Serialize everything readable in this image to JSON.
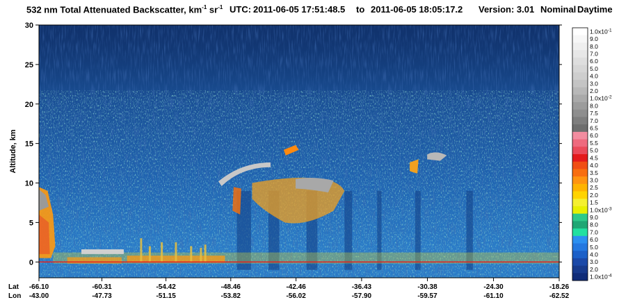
{
  "header": {
    "title_main": "532 nm Total Attenuated Backscatter, km",
    "title_unit_exp1": "-1",
    "title_unit_mid": " sr",
    "title_unit_exp2": "-1",
    "utc_label": "UTC:",
    "utc_start": "2011-06-05 17:51:48.5",
    "utc_to": "to",
    "utc_end": "2011-06-05 18:05:17.2",
    "version_label": "Version: 3.01",
    "mode_label": "Nominal",
    "daytime_label": "Daytime"
  },
  "chart_data": {
    "type": "heatmap",
    "ylabel": "Altitude, km",
    "ylim": [
      -2,
      30
    ],
    "yticks": [
      0,
      5,
      10,
      15,
      20,
      25,
      30
    ],
    "x_row_labels": [
      "Lat",
      "Lon"
    ],
    "lat": [
      -66.1,
      -60.31,
      -54.42,
      -48.46,
      -42.46,
      -36.43,
      -30.38,
      -24.3,
      -18.26
    ],
    "lat_labels": [
      "-66.10",
      "-60.31",
      "-54.42",
      "-48.46",
      "-42.46",
      "-36.43",
      "-30.38",
      "-24.30",
      "-18.26"
    ],
    "lon_labels": [
      "-43.00",
      "-47.73",
      "-51.15",
      "-53.82",
      "-56.02",
      "-57.90",
      "-59.57",
      "-61.10",
      "-62.52"
    ],
    "colorbar": {
      "labels": [
        "1.0x10-1",
        "9.0",
        "8.0",
        "7.0",
        "6.0",
        "5.0",
        "4.0",
        "3.0",
        "2.0",
        "1.0x10-2",
        "8.0",
        "7.5",
        "7.0",
        "6.5",
        "6.0",
        "5.5",
        "5.0",
        "4.5",
        "4.0",
        "3.5",
        "3.0",
        "2.5",
        "2.0",
        "1.5",
        "1.0x10-3",
        "9.0",
        "8.0",
        "7.0",
        "6.0",
        "5.0",
        "4.0",
        "3.0",
        "2.0",
        "1.0x10-4"
      ],
      "colors": [
        "#ffffff",
        "#f7f7f7",
        "#efefef",
        "#e7e7e7",
        "#dedede",
        "#d6d6d6",
        "#cecece",
        "#c4c4c4",
        "#b8b8b8",
        "#aaaaaa",
        "#9c9c9c",
        "#8e8e8e",
        "#7e7e7e",
        "#6e6e6e",
        "#f28da0",
        "#ee6a7e",
        "#ea4a5a",
        "#e41a1c",
        "#f04e14",
        "#f86e10",
        "#ff9410",
        "#ffb400",
        "#ffd400",
        "#f5f030",
        "#e8f000",
        "#2ec98a",
        "#1fa774",
        "#22e0a0",
        "#2c90f0",
        "#2478e0",
        "#1c60c8",
        "#1b49a8",
        "#173a8c",
        "#102c78"
      ]
    },
    "features": [
      {
        "name": "surface return",
        "alt_km": 0
      },
      {
        "name": "low cloud left",
        "lat_from": -66.1,
        "lat_to": -64.5,
        "alt_from": 0,
        "alt_to": 9.5
      },
      {
        "name": "cirrus arc",
        "lat_from": -50.0,
        "lat_to": -42.46,
        "alt_from": 9.5,
        "alt_to": 15.0
      },
      {
        "name": "mid-level cloud",
        "lat_from": -47.5,
        "lat_to": -38.0,
        "alt_from": 4.5,
        "alt_to": 11.0
      },
      {
        "name": "high cirrus right",
        "lat_from": -32.0,
        "lat_to": -28.5,
        "alt_from": 12.0,
        "alt_to": 14.0
      }
    ]
  }
}
